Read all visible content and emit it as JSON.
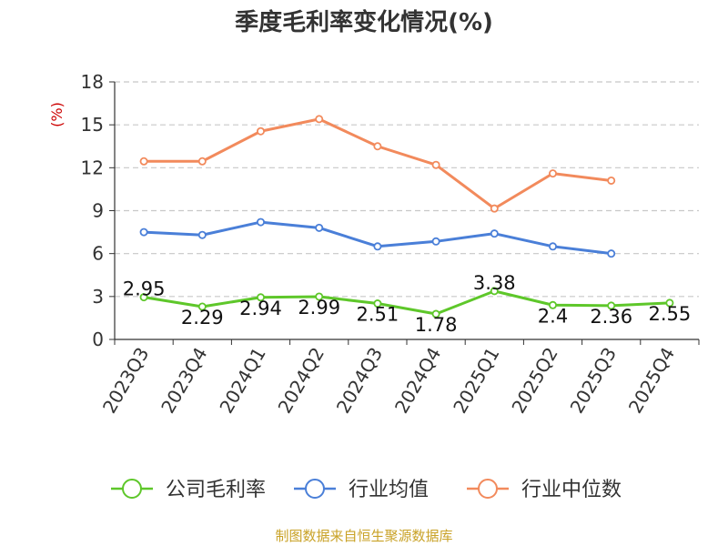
{
  "title": "季度毛利率变化情况(%)",
  "source": "制图数据来自恒生聚源数据库",
  "chart_data": {
    "type": "line",
    "ylabel": "(%)",
    "ylim": [
      0,
      18
    ],
    "yticks": [
      0,
      3,
      6,
      9,
      12,
      15,
      18
    ],
    "grid": true,
    "legend_position": "bottom",
    "categories": [
      "2023Q3",
      "2023Q4",
      "2024Q1",
      "2024Q2",
      "2024Q3",
      "2024Q4",
      "2025Q1",
      "2025Q2",
      "2025Q3",
      "2025Q4"
    ],
    "series": [
      {
        "name": "公司毛利率",
        "color": "#5ec72a",
        "values": [
          2.95,
          2.29,
          2.94,
          2.99,
          2.51,
          1.78,
          3.38,
          2.4,
          2.36,
          2.55
        ],
        "data_labels": [
          "2.95",
          "2.29",
          "2.94",
          "2.99",
          "2.51",
          "1.78",
          "3.38",
          "2.4",
          "2.36",
          "2.55"
        ]
      },
      {
        "name": "行业均值",
        "color": "#4a7fd8",
        "values": [
          7.5,
          7.3,
          8.2,
          7.8,
          6.5,
          6.85,
          7.4,
          6.5,
          6.0,
          null
        ]
      },
      {
        "name": "行业中位数",
        "color": "#f28a5c",
        "values": [
          12.45,
          12.45,
          14.55,
          15.4,
          13.5,
          12.2,
          9.15,
          11.6,
          11.1,
          null
        ]
      }
    ]
  }
}
